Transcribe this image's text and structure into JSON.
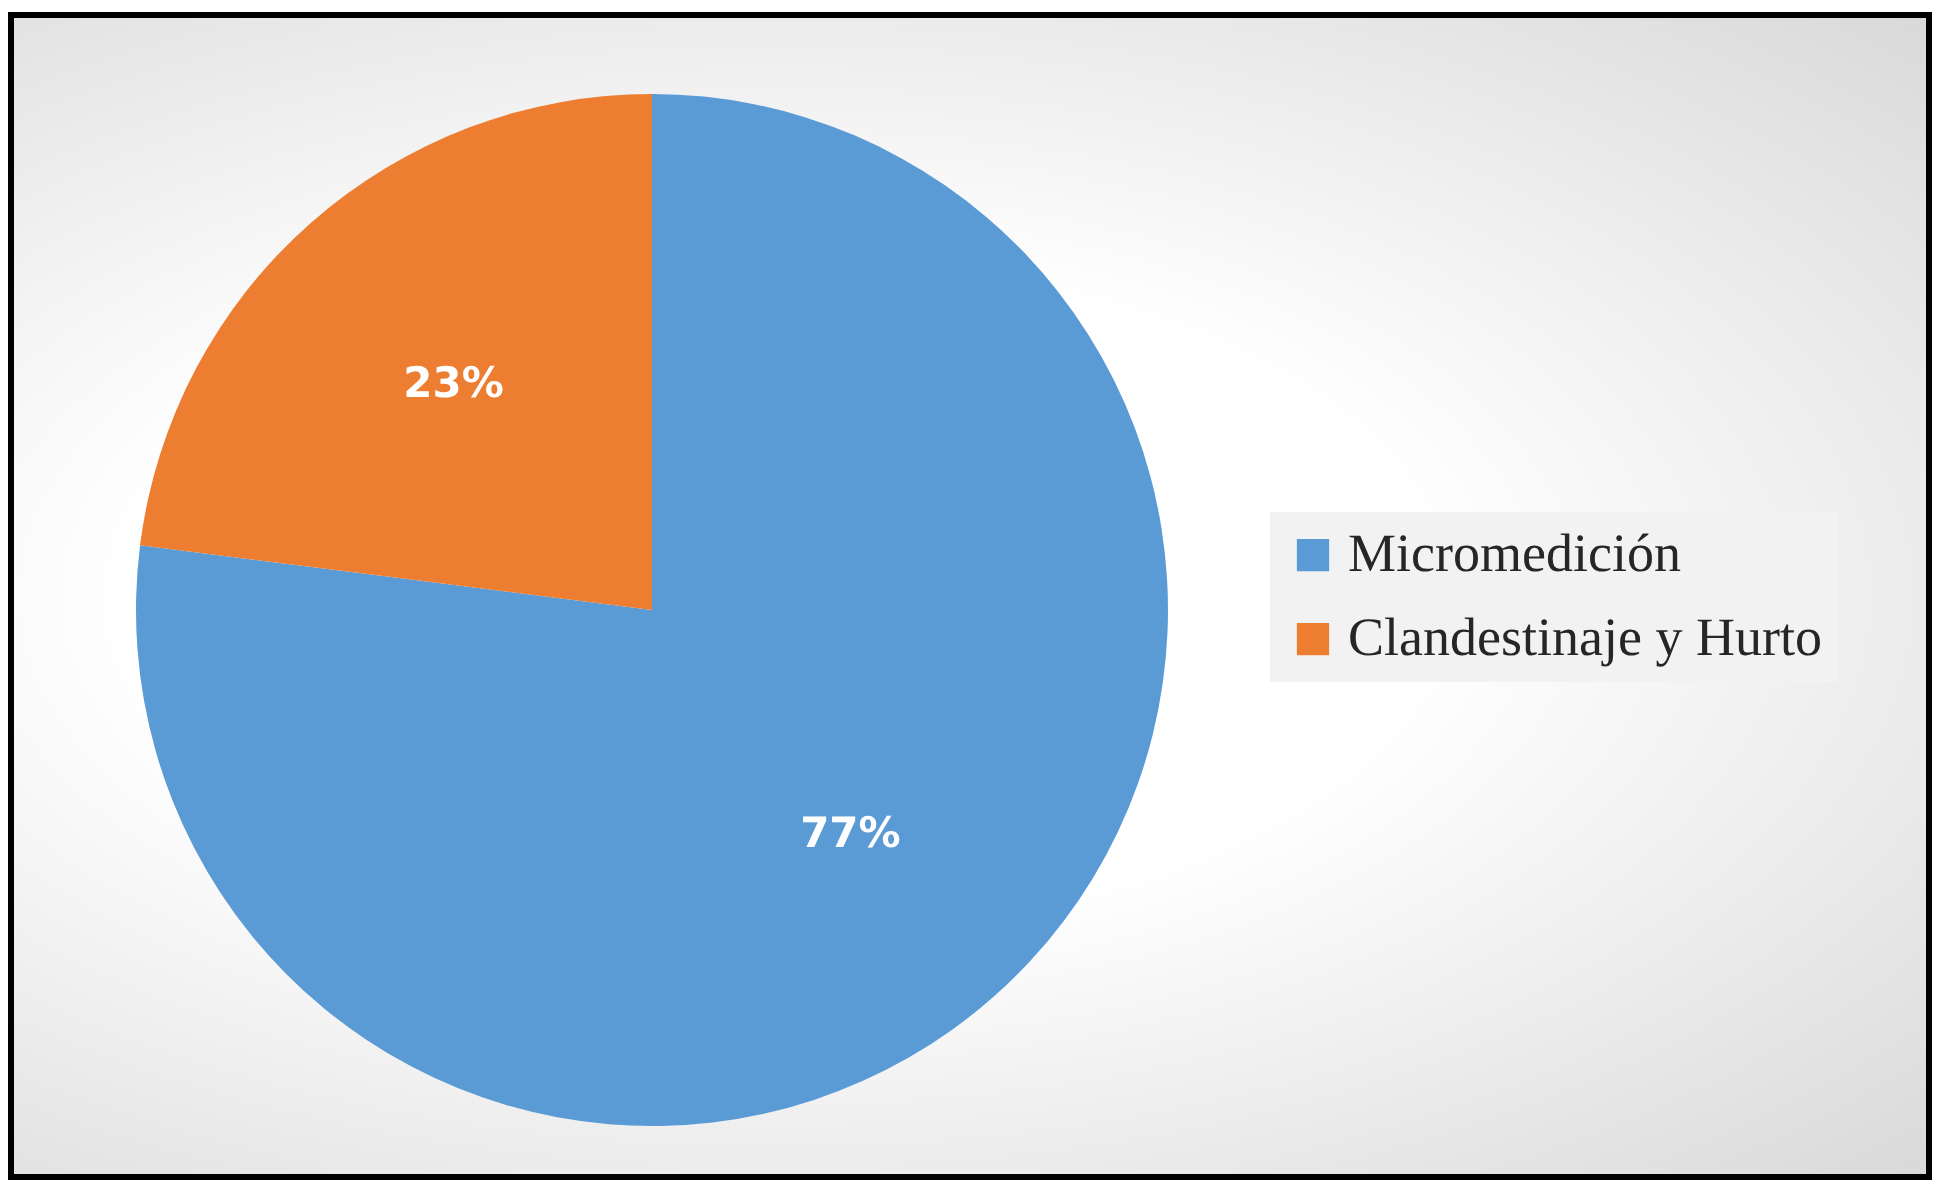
{
  "chart_data": {
    "type": "pie",
    "categories": [
      "Micromedición",
      "Clandestinaje y Hurto"
    ],
    "values": [
      77,
      23
    ],
    "colors": [
      "#5b9bd5",
      "#ed7d31"
    ],
    "value_labels": [
      "77%",
      "23%"
    ],
    "legend": "right"
  }
}
